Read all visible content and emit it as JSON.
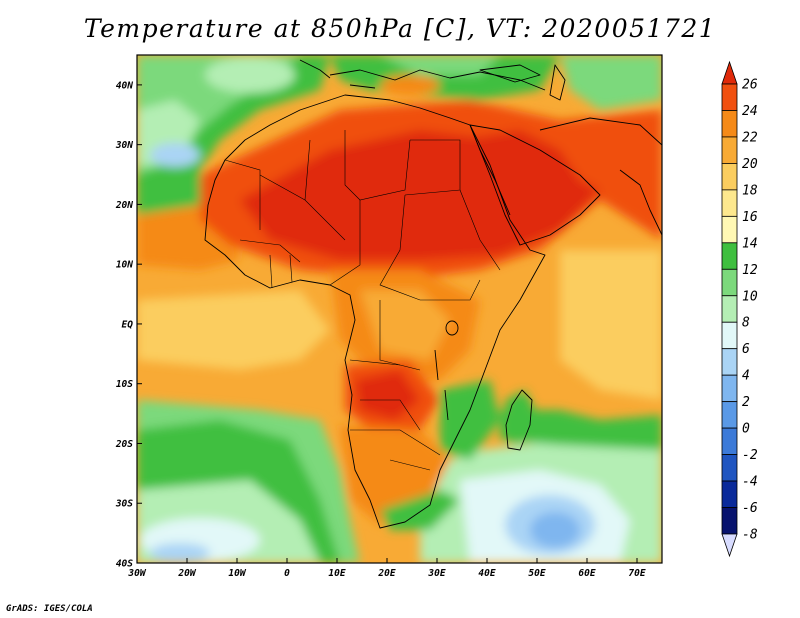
{
  "title": "Temperature at 850hPa [C], VT: 2020051721",
  "credit": "GrADS: IGES/COLA",
  "map": {
    "projection": "lat-lon",
    "lon_range": [
      -30,
      75
    ],
    "lat_range": [
      -40,
      45
    ],
    "lon_ticks": [
      {
        "value": -30,
        "label": "30W"
      },
      {
        "value": -20,
        "label": "20W"
      },
      {
        "value": -10,
        "label": "10W"
      },
      {
        "value": 0,
        "label": "0"
      },
      {
        "value": 10,
        "label": "10E"
      },
      {
        "value": 20,
        "label": "20E"
      },
      {
        "value": 30,
        "label": "30E"
      },
      {
        "value": 40,
        "label": "40E"
      },
      {
        "value": 50,
        "label": "50E"
      },
      {
        "value": 60,
        "label": "60E"
      },
      {
        "value": 70,
        "label": "70E"
      }
    ],
    "lat_ticks": [
      {
        "value": 40,
        "label": "40N"
      },
      {
        "value": 30,
        "label": "30N"
      },
      {
        "value": 20,
        "label": "20N"
      },
      {
        "value": 10,
        "label": "10N"
      },
      {
        "value": 0,
        "label": "EQ"
      },
      {
        "value": -10,
        "label": "10S"
      },
      {
        "value": -20,
        "label": "20S"
      },
      {
        "value": -30,
        "label": "30S"
      },
      {
        "value": -40,
        "label": "40S"
      }
    ]
  },
  "colorbar": {
    "levels": [
      26,
      24,
      22,
      20,
      18,
      16,
      14,
      12,
      10,
      8,
      6,
      4,
      2,
      0,
      -2,
      -4,
      -6,
      -8
    ],
    "colors": [
      "#e02a0a",
      "#f05010",
      "#f58a18",
      "#f8aa35",
      "#fbcd5f",
      "#fde88e",
      "#fff8b4",
      "#3fbf3f",
      "#7cd97c",
      "#b4eeb4",
      "#e2f8f8",
      "#aad4f5",
      "#7fb6ef",
      "#5a99e6",
      "#3c7ad8",
      "#1f55c0",
      "#0a2a9a",
      "#08136e",
      "#d8dcff"
    ]
  }
}
